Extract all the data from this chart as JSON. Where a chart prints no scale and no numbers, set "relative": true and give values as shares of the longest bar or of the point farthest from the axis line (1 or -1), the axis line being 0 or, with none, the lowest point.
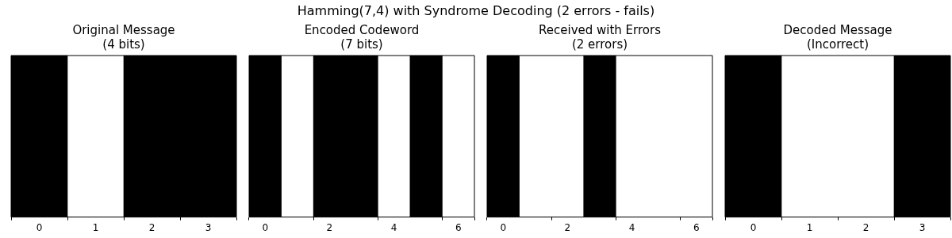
{
  "chart_data": [
    {
      "type": "other",
      "title": "Hamming(7,4) with Syndrome Decoding (2 errors - fails)"
    },
    {
      "type": "bar",
      "relative": true,
      "title": "Original Message\n(4 bits)",
      "categories": [
        "0",
        "1",
        "2",
        "3"
      ],
      "values": [
        1,
        0,
        1,
        1
      ],
      "color": "#000000"
    },
    {
      "type": "bar",
      "relative": true,
      "title": "Encoded Codeword\n(7 bits)",
      "categories": [
        "0",
        null,
        "2",
        null,
        "4",
        null,
        "6"
      ],
      "values": [
        1,
        0,
        1,
        1,
        0,
        1,
        0
      ],
      "color": "#000000"
    },
    {
      "type": "bar",
      "relative": true,
      "title": "Received with Errors\n(2 errors)",
      "categories": [
        "0",
        null,
        "2",
        null,
        "4",
        null,
        "6"
      ],
      "values": [
        1,
        0,
        0,
        1,
        0,
        0,
        0
      ],
      "color": "#000000"
    },
    {
      "type": "bar",
      "relative": true,
      "title": "Decoded Message\n(Incorrect)",
      "categories": [
        "0",
        "1",
        "2",
        "3"
      ],
      "values": [
        1,
        0,
        0,
        1
      ],
      "color": "#000000"
    }
  ]
}
